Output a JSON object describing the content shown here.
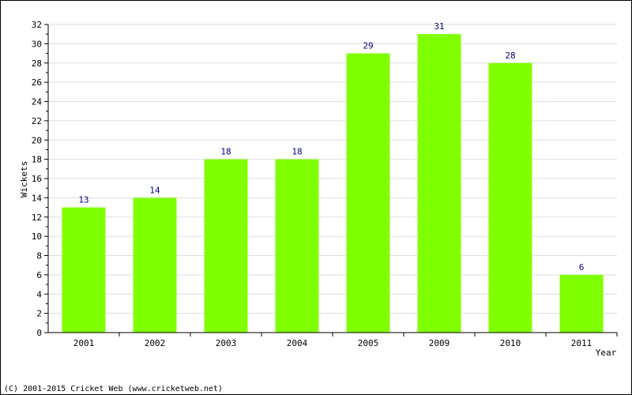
{
  "chart_data": {
    "type": "bar",
    "categories": [
      "2001",
      "2002",
      "2003",
      "2004",
      "2005",
      "2009",
      "2010",
      "2011"
    ],
    "values": [
      13,
      14,
      18,
      18,
      29,
      31,
      28,
      6
    ],
    "xlabel": "Year",
    "ylabel": "Wickets",
    "ylim": [
      0,
      32
    ],
    "yticks": [
      0,
      2,
      4,
      6,
      8,
      10,
      12,
      14,
      16,
      18,
      20,
      22,
      24,
      26,
      28,
      30,
      32
    ],
    "bar_color": "#80ff00",
    "label_color": "#000080",
    "grid": true,
    "data_labels": true
  },
  "footer": "(C) 2001-2015 Cricket Web (www.cricketweb.net)"
}
